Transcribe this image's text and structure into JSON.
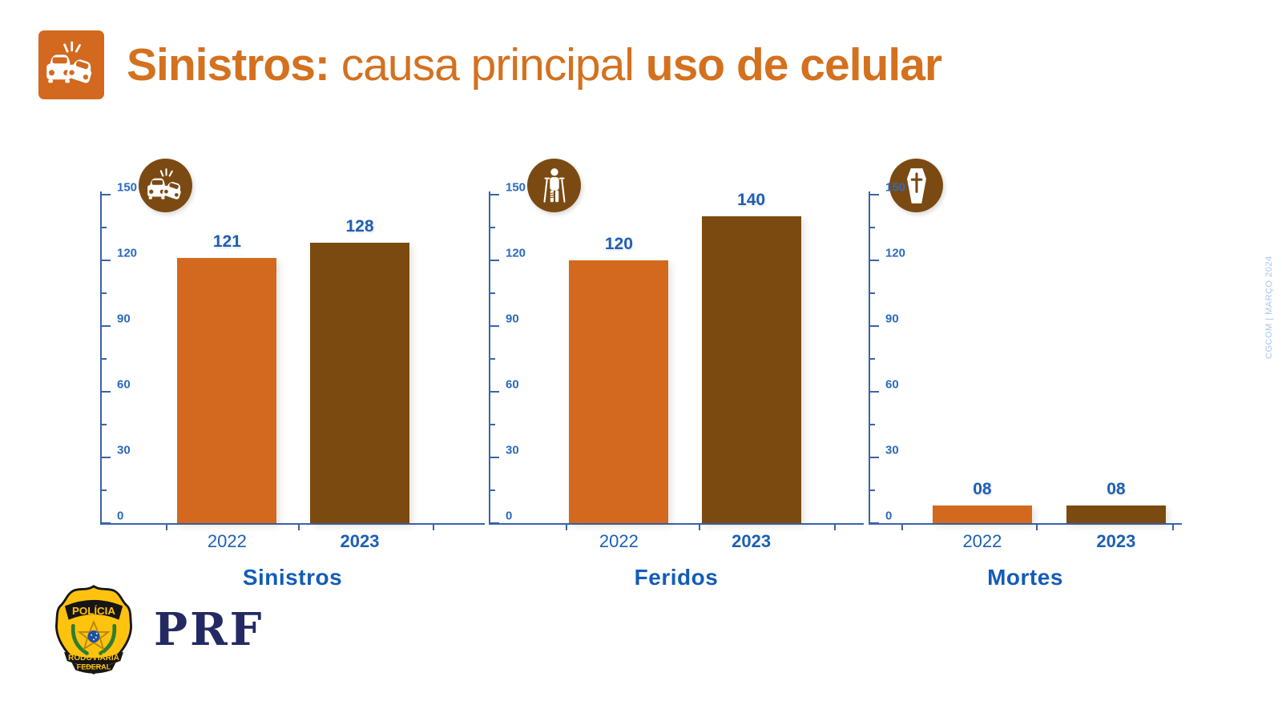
{
  "header": {
    "title_bold_1": "Sinistros:",
    "title_regular": "causa principal",
    "title_bold_2": "uso de celular",
    "badge_icon": "car-crash-icon"
  },
  "chart_data": [
    {
      "type": "bar",
      "title": "Sinistros",
      "icon": "car-crash",
      "categories": [
        "2022",
        "2023"
      ],
      "values": [
        121,
        128
      ],
      "value_labels": [
        "121",
        "128"
      ],
      "ylim": [
        0,
        150
      ],
      "yticks": [
        0,
        30,
        60,
        90,
        120,
        150
      ],
      "minor_yticks": [
        15,
        45,
        75,
        105,
        135
      ],
      "grid": false,
      "legend": "none"
    },
    {
      "type": "bar",
      "title": "Feridos",
      "icon": "injured-person",
      "categories": [
        "2022",
        "2023"
      ],
      "values": [
        120,
        140
      ],
      "value_labels": [
        "120",
        "140"
      ],
      "ylim": [
        0,
        150
      ],
      "yticks": [
        0,
        30,
        60,
        90,
        120,
        150
      ],
      "minor_yticks": [
        15,
        45,
        75,
        105,
        135
      ],
      "grid": false,
      "legend": "none"
    },
    {
      "type": "bar",
      "title": "Mortes",
      "icon": "coffin",
      "categories": [
        "2022",
        "2023"
      ],
      "values": [
        8,
        8
      ],
      "value_labels": [
        "08",
        "08"
      ],
      "ylim": [
        0,
        150
      ],
      "yticks": [
        0,
        30,
        60,
        90,
        120,
        150
      ],
      "minor_yticks": [
        15,
        45,
        75,
        105,
        135
      ],
      "grid": false,
      "legend": "none"
    }
  ],
  "colors": {
    "bar_2022_orange": "#D2691E",
    "bar_2023_brown": "#7B4A10",
    "icon_circle_brown": "#7B4A12",
    "title_orange": "#D4711F",
    "axis_blue": "#3B63A8",
    "label_blue": "#1D5FB5",
    "tick_label_blue": "#2A6BBF",
    "chart_title_blue": "#135CB8",
    "badge_yellow": "#FFC20E",
    "brand_navy": "#232A63",
    "credit_light_blue": "#A9C6E5"
  },
  "footer": {
    "badge_top": "POLÍCIA",
    "badge_middle": "RODOVIÁRIA",
    "badge_bottom": "FEDERAL",
    "brand": "PRF"
  },
  "credit": "CGCOM | MARÇO 2024"
}
